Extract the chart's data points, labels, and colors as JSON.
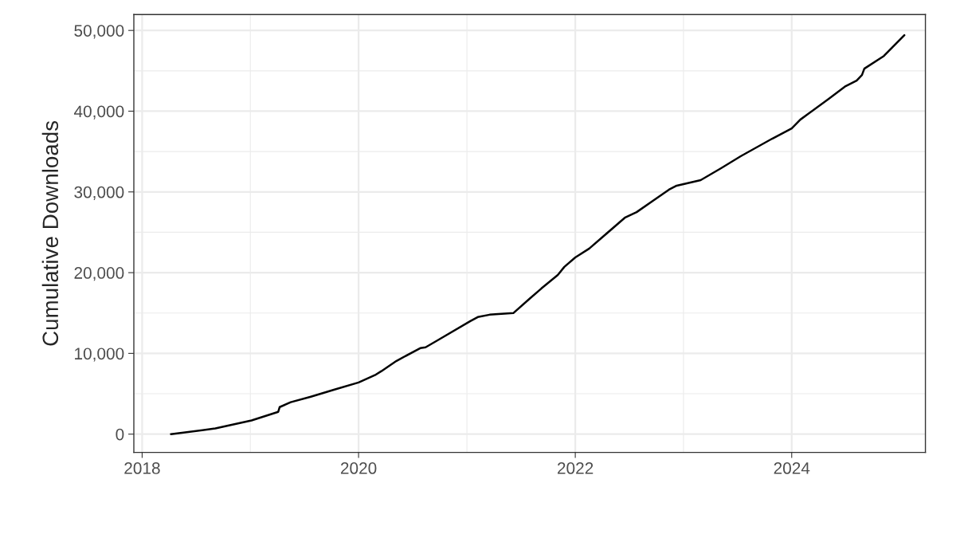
{
  "chart_data": {
    "type": "line",
    "ylabel": "Cumulative Downloads",
    "x": [
      "2018-04-08",
      "2018-09-05",
      "2019-01-05",
      "2019-04-05",
      "2019-04-10",
      "2019-05-17",
      "2019-07-24",
      "2019-10-12",
      "2020-01-01",
      "2020-02-25",
      "2020-03-18",
      "2020-05-08",
      "2020-07-27",
      "2020-08-14",
      "2020-09-20",
      "2021-01-12",
      "2021-02-06",
      "2021-03-18",
      "2021-06-06",
      "2021-07-31",
      "2021-09-09",
      "2021-11-03",
      "2021-11-25",
      "2022-01-01",
      "2022-02-17",
      "2022-06-17",
      "2022-07-27",
      "2022-11-13",
      "2022-12-09",
      "2023-02-28",
      "2023-05-08",
      "2023-07-13",
      "2023-10-27",
      "2024-01-01",
      "2024-01-30",
      "2024-05-05",
      "2024-07-01",
      "2024-08-07",
      "2024-08-25",
      "2024-09-02",
      "2024-11-07",
      "2025-01-15"
    ],
    "series": [
      {
        "color": "#000000",
        "values": [
          0,
          700,
          1700,
          2760,
          3350,
          3950,
          4640,
          5520,
          6400,
          7300,
          7800,
          9070,
          10650,
          10750,
          11540,
          14000,
          14500,
          14790,
          14990,
          16770,
          18050,
          19720,
          20710,
          21890,
          22980,
          26800,
          27500,
          30280,
          30770,
          31460,
          32940,
          34420,
          36590,
          37870,
          38950,
          41520,
          43100,
          43790,
          44480,
          45270,
          46840,
          49410
        ]
      }
    ],
    "xlim": [
      "2017-12-04",
      "2025-03-27"
    ],
    "xticks": [
      {
        "value": "2018-01-01",
        "label": "2018"
      },
      {
        "value": "2020-01-01",
        "label": "2020"
      },
      {
        "value": "2022-01-01",
        "label": "2022"
      },
      {
        "value": "2024-01-01",
        "label": "2024"
      }
    ],
    "ylim": [
      -2270,
      51970
    ],
    "yticks": [
      {
        "value": 0,
        "label": "0"
      },
      {
        "value": 10000,
        "label": "10,000"
      },
      {
        "value": 20000,
        "label": "20,000"
      },
      {
        "value": 30000,
        "label": "30,000"
      },
      {
        "value": 40000,
        "label": "40,000"
      },
      {
        "value": 50000,
        "label": "50,000"
      }
    ],
    "grid": true,
    "legend": false,
    "marker": "none",
    "line_style": "solid"
  }
}
